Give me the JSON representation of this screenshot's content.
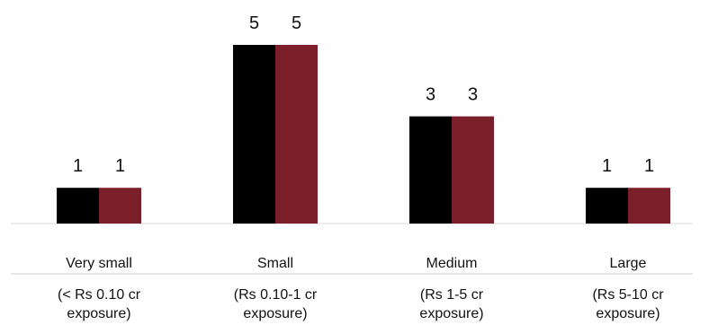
{
  "chart_data": {
    "type": "bar",
    "categories": [
      {
        "name": "Very small",
        "sub": [
          "(< Rs 0.10 cr",
          "exposure)"
        ]
      },
      {
        "name": "Small",
        "sub": [
          "(Rs 0.10-1 cr",
          "exposure)"
        ]
      },
      {
        "name": "Medium",
        "sub": [
          "(Rs 1-5 cr",
          "exposure)"
        ]
      },
      {
        "name": "Large",
        "sub": [
          "(Rs 5-10 cr",
          "exposure)"
        ]
      }
    ],
    "series": [
      {
        "values": [
          1,
          5,
          3,
          1
        ],
        "color": "#000000"
      },
      {
        "values": [
          1,
          5,
          3,
          1
        ],
        "color": "#7b1f2a"
      }
    ],
    "ylim": [
      0,
      5
    ],
    "grid": false,
    "legend": "none",
    "data_labels": true
  }
}
